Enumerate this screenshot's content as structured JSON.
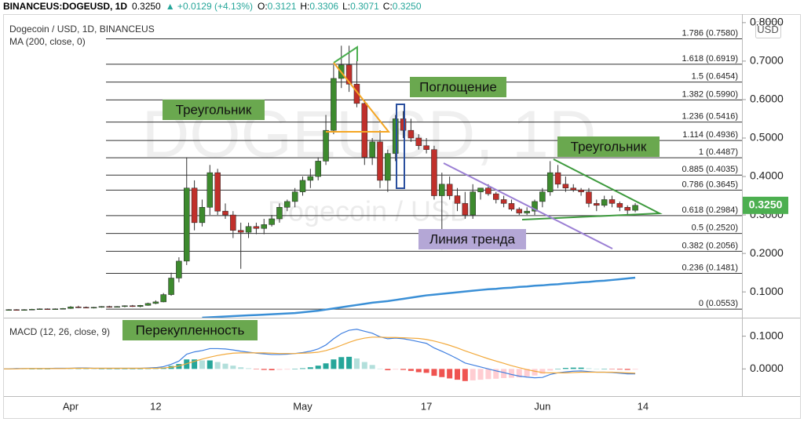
{
  "chart_data": {
    "type": "candlestick",
    "header": {
      "symbol": "BINANCEUS:DOGEUSD, 1D",
      "price": "0.3250",
      "change": "▲ +0.0129 (+4.13%)",
      "open_label": "O:",
      "open": "0.3121",
      "high_label": "H:",
      "high": "0.3306",
      "low_label": "L:",
      "low": "0.3071",
      "close_label": "C:",
      "close": "0.3250"
    },
    "title": "Dogecoin / USD, 1D, BINANCEUS",
    "currency": "USD",
    "price_label": "0.3250",
    "watermark": {
      "symbol": "DOGEUSD, 1D",
      "name": "Dogecoin / USD"
    },
    "categories": [
      null,
      null,
      null,
      null,
      null,
      null,
      null,
      null,
      null,
      "Apr",
      null,
      null,
      null,
      null,
      null,
      null,
      null,
      null,
      null,
      null,
      "12",
      null,
      null,
      null,
      null,
      null,
      null,
      null,
      null,
      null,
      null,
      null,
      null,
      null,
      null,
      null,
      null,
      null,
      null,
      "May",
      null,
      null,
      null,
      null,
      null,
      null,
      null,
      null,
      null,
      null,
      null,
      null,
      null,
      null,
      null,
      "17",
      null,
      null,
      null,
      null,
      null,
      null,
      null,
      null,
      null,
      null,
      null,
      null,
      null,
      null,
      "Jun",
      null,
      null,
      null,
      null,
      null,
      null,
      null,
      null,
      null,
      null,
      null,
      null,
      "14"
    ],
    "ylim": [
      0.033,
      0.814
    ],
    "yticks": [
      {
        "value": 0.1,
        "label": "0.1000"
      },
      {
        "value": 0.2,
        "label": "0.2000"
      },
      {
        "value": 0.3,
        "label": "0.3000"
      },
      {
        "value": 0.4,
        "label": "0.4000"
      },
      {
        "value": 0.5,
        "label": "0.5000"
      },
      {
        "value": 0.6,
        "label": "0.6000"
      },
      {
        "value": 0.7,
        "label": "0.7000"
      },
      {
        "value": 0.8,
        "label": "0.8000"
      }
    ],
    "candles": {
      "up_color": "#3d8a2e",
      "down_color": "#c0302b",
      "wick_color": "#333333",
      "open": [
        0.052,
        0.053,
        0.054,
        0.053,
        0.054,
        0.055,
        0.056,
        0.055,
        0.056,
        0.057,
        0.061,
        0.06,
        0.059,
        0.06,
        0.062,
        0.061,
        0.062,
        0.064,
        0.062,
        0.065,
        0.07,
        0.074,
        0.093,
        0.136,
        0.18,
        0.37,
        0.28,
        0.32,
        0.41,
        0.31,
        0.3,
        0.26,
        0.255,
        0.27,
        0.265,
        0.275,
        0.29,
        0.32,
        0.335,
        0.36,
        0.39,
        0.4,
        0.44,
        0.52,
        0.655,
        0.69,
        0.64,
        0.59,
        0.45,
        0.49,
        0.39,
        0.46,
        0.55,
        0.52,
        0.5,
        0.48,
        0.47,
        0.35,
        0.38,
        0.35,
        0.33,
        0.3,
        0.36,
        0.37,
        0.355,
        0.34,
        0.33,
        0.315,
        0.305,
        0.31,
        0.335,
        0.36,
        0.41,
        0.38,
        0.37,
        0.365,
        0.36,
        0.33,
        0.325,
        0.34,
        0.33,
        0.32,
        0.3121,
        null
      ],
      "high": [
        0.054,
        0.055,
        0.055,
        0.055,
        0.056,
        0.057,
        0.057,
        0.057,
        0.058,
        0.063,
        0.064,
        0.062,
        0.061,
        0.063,
        0.064,
        0.063,
        0.065,
        0.066,
        0.066,
        0.072,
        0.078,
        0.097,
        0.15,
        0.19,
        0.45,
        0.39,
        0.34,
        0.43,
        0.42,
        0.33,
        0.31,
        0.28,
        0.28,
        0.28,
        0.29,
        0.3,
        0.33,
        0.34,
        0.37,
        0.4,
        0.42,
        0.45,
        0.56,
        0.69,
        0.74,
        0.74,
        0.7,
        0.6,
        0.5,
        0.52,
        0.47,
        0.56,
        0.57,
        0.55,
        0.51,
        0.5,
        0.48,
        0.41,
        0.4,
        0.37,
        0.36,
        0.38,
        0.37,
        0.38,
        0.36,
        0.35,
        0.34,
        0.32,
        0.32,
        0.34,
        0.37,
        0.44,
        0.43,
        0.4,
        0.38,
        0.37,
        0.37,
        0.34,
        0.35,
        0.35,
        0.335,
        0.325,
        0.3306,
        null
      ],
      "low": [
        0.051,
        0.052,
        0.052,
        0.052,
        0.053,
        0.054,
        0.054,
        0.054,
        0.055,
        0.056,
        0.058,
        0.058,
        0.057,
        0.059,
        0.059,
        0.06,
        0.06,
        0.061,
        0.06,
        0.064,
        0.068,
        0.073,
        0.09,
        0.125,
        0.17,
        0.26,
        0.27,
        0.3,
        0.3,
        0.29,
        0.24,
        0.16,
        0.24,
        0.25,
        0.25,
        0.27,
        0.28,
        0.31,
        0.32,
        0.35,
        0.37,
        0.39,
        0.43,
        0.51,
        0.63,
        0.62,
        0.58,
        0.43,
        0.43,
        0.37,
        0.36,
        0.44,
        0.5,
        0.49,
        0.47,
        0.46,
        0.34,
        0.21,
        0.34,
        0.31,
        0.29,
        0.29,
        0.34,
        0.35,
        0.33,
        0.32,
        0.31,
        0.3,
        0.3,
        0.3,
        0.32,
        0.35,
        0.37,
        0.36,
        0.36,
        0.35,
        0.32,
        0.31,
        0.32,
        0.32,
        0.31,
        0.3,
        0.3071,
        null
      ],
      "close": [
        0.053,
        0.054,
        0.053,
        0.054,
        0.055,
        0.056,
        0.055,
        0.056,
        0.057,
        0.061,
        0.06,
        0.059,
        0.06,
        0.062,
        0.061,
        0.062,
        0.064,
        0.062,
        0.065,
        0.07,
        0.074,
        0.093,
        0.136,
        0.18,
        0.37,
        0.28,
        0.32,
        0.41,
        0.31,
        0.3,
        0.26,
        0.255,
        0.27,
        0.265,
        0.275,
        0.29,
        0.32,
        0.335,
        0.36,
        0.39,
        0.4,
        0.44,
        0.52,
        0.655,
        0.69,
        0.64,
        0.59,
        0.45,
        0.49,
        0.39,
        0.46,
        0.55,
        0.52,
        0.5,
        0.48,
        0.47,
        0.35,
        0.38,
        0.35,
        0.33,
        0.3,
        0.36,
        0.37,
        0.355,
        0.34,
        0.33,
        0.315,
        0.305,
        0.31,
        0.335,
        0.36,
        0.41,
        0.38,
        0.37,
        0.365,
        0.36,
        0.33,
        0.325,
        0.34,
        0.33,
        0.32,
        0.3121,
        0.325,
        null
      ]
    },
    "ma": {
      "name": "MA (200, close, 0)",
      "color": "#3a8fd6",
      "values": [
        null,
        null,
        null,
        null,
        null,
        null,
        null,
        null,
        null,
        null,
        null,
        null,
        null,
        null,
        null,
        null,
        null,
        null,
        null,
        null,
        null,
        null,
        null,
        null,
        null,
        null,
        0.033,
        0.034,
        0.035,
        0.036,
        0.037,
        0.038,
        0.039,
        0.04,
        0.041,
        0.042,
        0.043,
        0.044,
        0.045,
        0.047,
        0.049,
        0.051,
        0.054,
        0.057,
        0.06,
        0.063,
        0.066,
        0.069,
        0.072,
        0.074,
        0.076,
        0.079,
        0.082,
        0.085,
        0.088,
        0.091,
        0.093,
        0.095,
        0.097,
        0.099,
        0.101,
        0.103,
        0.105,
        0.107,
        0.108,
        0.11,
        0.111,
        0.113,
        0.114,
        0.116,
        0.117,
        0.119,
        0.12,
        0.122,
        0.123,
        0.125,
        0.126,
        0.128,
        0.129,
        0.131,
        0.133,
        0.135,
        0.137,
        null
      ]
    },
    "fib_levels": [
      {
        "label": "1.786 (0.7580)",
        "value": 0.758
      },
      {
        "label": "1.618 (0.6919)",
        "value": 0.6919
      },
      {
        "label": "1.5 (0.6454)",
        "value": 0.6454
      },
      {
        "label": "1.382 (0.5990)",
        "value": 0.599
      },
      {
        "label": "1.236 (0.5416)",
        "value": 0.5416
      },
      {
        "label": "1.114 (0.4936)",
        "value": 0.4936
      },
      {
        "label": "1 (0.4487)",
        "value": 0.4487
      },
      {
        "label": "0.885 (0.4035)",
        "value": 0.4035
      },
      {
        "label": "0.786 (0.3645)",
        "value": 0.3645
      },
      {
        "label": "0.618 (0.2984)",
        "value": 0.2984
      },
      {
        "label": "0.5 (0.2520)",
        "value": 0.252
      },
      {
        "label": "0.382 (0.2056)",
        "value": 0.2056
      },
      {
        "label": "0.236 (0.1481)",
        "value": 0.1481
      },
      {
        "label": "0 (0.0553)",
        "value": 0.0553
      }
    ],
    "annotations": [
      "Треугольник",
      "Поглощение",
      "Треугольник",
      "Линия тренда",
      "Перекупленность"
    ],
    "macd": {
      "title": "MACD (12, 26, close, 9)",
      "ylim": [
        -0.083,
        0.154
      ],
      "yticks": [
        {
          "value": 0.1,
          "label": "0.1000"
        },
        {
          "value": 0,
          "label": "0.0000"
        }
      ],
      "macd": {
        "color": "#3f7fe0",
        "values": [
          0,
          0,
          0.001,
          0.001,
          0.001,
          0.001,
          0.001,
          0.002,
          0.002,
          0.002,
          0.003,
          0.003,
          0.002,
          0.002,
          0.002,
          0.002,
          0.002,
          0.002,
          0.002,
          0.003,
          0.004,
          0.007,
          0.014,
          0.024,
          0.045,
          0.052,
          0.056,
          0.062,
          0.062,
          0.061,
          0.058,
          0.054,
          0.051,
          0.048,
          0.046,
          0.044,
          0.044,
          0.045,
          0.047,
          0.05,
          0.054,
          0.061,
          0.073,
          0.092,
          0.108,
          0.118,
          0.121,
          0.115,
          0.109,
          0.098,
          0.092,
          0.094,
          0.092,
          0.088,
          0.083,
          0.078,
          0.064,
          0.054,
          0.043,
          0.031,
          0.018,
          0.012,
          0.006,
          0,
          -0.006,
          -0.011,
          -0.017,
          -0.022,
          -0.025,
          -0.027,
          -0.026,
          -0.017,
          -0.012,
          -0.009,
          -0.007,
          -0.006,
          -0.008,
          -0.01,
          -0.01,
          -0.011,
          -0.013,
          -0.015,
          -0.015,
          null
        ]
      },
      "signal": {
        "color": "#f2a93b",
        "values": [
          0,
          0,
          0,
          0.001,
          0.001,
          0.001,
          0.001,
          0.001,
          0.001,
          0.002,
          0.002,
          0.002,
          0.002,
          0.002,
          0.002,
          0.002,
          0.002,
          0.002,
          0.002,
          0.002,
          0.002,
          0.003,
          0.005,
          0.009,
          0.016,
          0.023,
          0.03,
          0.036,
          0.041,
          0.045,
          0.048,
          0.049,
          0.049,
          0.049,
          0.049,
          0.048,
          0.047,
          0.047,
          0.047,
          0.048,
          0.049,
          0.051,
          0.056,
          0.063,
          0.072,
          0.081,
          0.089,
          0.094,
          0.097,
          0.097,
          0.096,
          0.096,
          0.095,
          0.094,
          0.093,
          0.09,
          0.085,
          0.079,
          0.072,
          0.064,
          0.055,
          0.047,
          0.039,
          0.031,
          0.024,
          0.017,
          0.01,
          0.004,
          -0.002,
          -0.007,
          -0.011,
          -0.012,
          -0.012,
          -0.012,
          -0.011,
          -0.01,
          -0.01,
          -0.01,
          -0.01,
          -0.01,
          -0.011,
          -0.012,
          -0.013,
          null
        ]
      },
      "histogram": {
        "colors": [
          "#26a69a",
          "#b2dfdb",
          "#ffcdd2",
          "#ef5350"
        ],
        "values": [
          0,
          0,
          0.001,
          0,
          0,
          0,
          0,
          0.001,
          0.001,
          0,
          0.001,
          0.001,
          0,
          0,
          0,
          0,
          0,
          0,
          0,
          0.001,
          0.002,
          0.004,
          0.009,
          0.015,
          0.029,
          0.029,
          0.026,
          0.026,
          0.021,
          0.016,
          0.01,
          0.005,
          0.002,
          -0.001,
          -0.003,
          -0.004,
          -0.003,
          -0.002,
          0,
          0.002,
          0.005,
          0.01,
          0.017,
          0.029,
          0.036,
          0.037,
          0.032,
          0.021,
          0.012,
          0.001,
          -0.004,
          -0.002,
          -0.003,
          -0.006,
          -0.01,
          -0.012,
          -0.021,
          -0.025,
          -0.029,
          -0.033,
          -0.037,
          -0.035,
          -0.033,
          -0.031,
          -0.03,
          -0.028,
          -0.027,
          -0.026,
          -0.023,
          -0.02,
          -0.015,
          -0.005,
          0,
          0.003,
          0.004,
          0.004,
          0.002,
          0,
          0,
          -0.001,
          -0.002,
          -0.003,
          -0.002,
          null
        ]
      }
    }
  }
}
